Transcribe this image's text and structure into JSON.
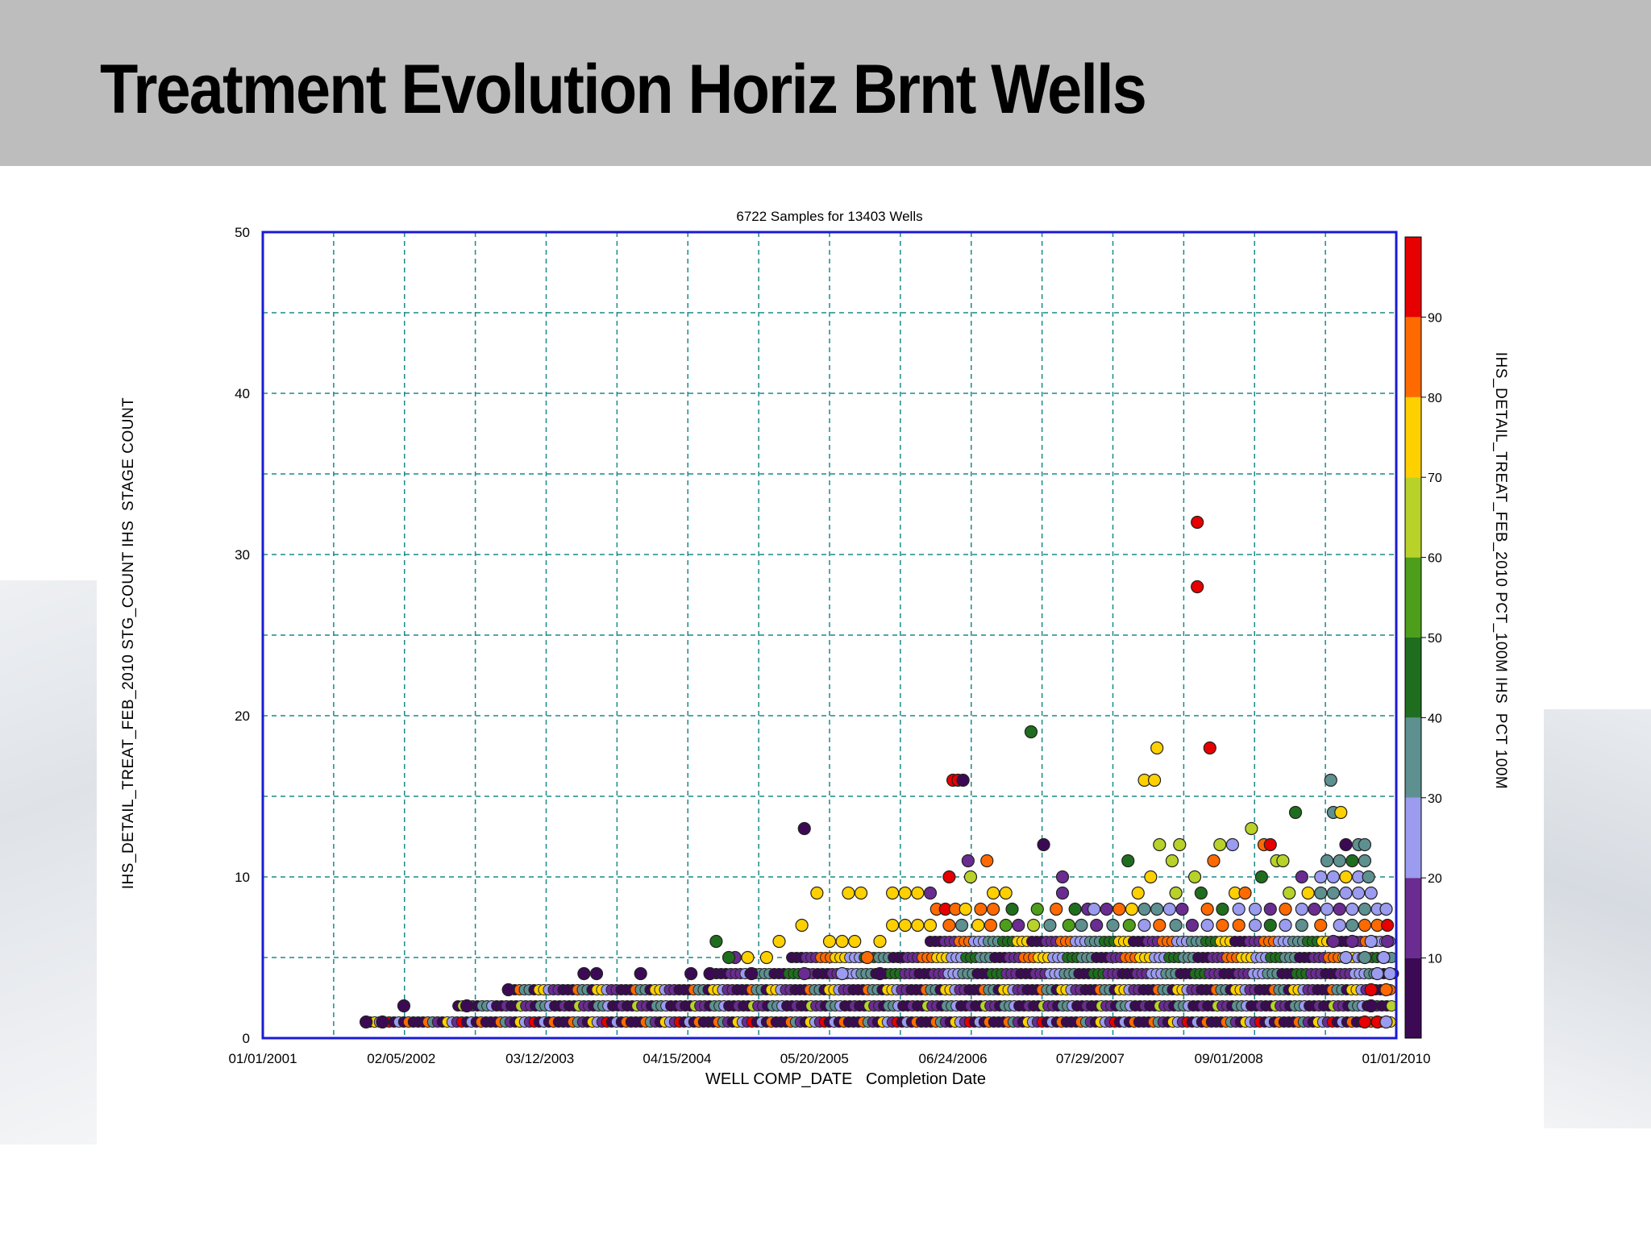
{
  "slide": {
    "title": "Treatment Evolution Horiz Brnt Wells"
  },
  "chart_data": {
    "type": "scatter",
    "title": "6722 Samples for 13403 Wells",
    "xlabel": "WELL COMP_DATE   Completion Date",
    "ylabel": "IHS_DETAIL_TREAT_FEB_2010 STG_COUNT IHS  STAGE COUNT",
    "colorbar_label": "IHS_DETAIL_TREAT_FEB_2010 PCT_100M IHS  PCT 100M",
    "x_ticks": [
      "01/01/2001",
      "02/05/2002",
      "03/12/2003",
      "04/15/2004",
      "05/20/2005",
      "06/24/2006",
      "07/29/2007",
      "09/01/2008",
      "01/01/2010"
    ],
    "x_tick_values": [
      2001.0,
      2002.1,
      2003.2,
      2004.29,
      2005.38,
      2006.48,
      2007.57,
      2008.67,
      2010.0
    ],
    "xlim": [
      2001.0,
      2010.0
    ],
    "y_ticks": [
      "0",
      "10",
      "20",
      "30",
      "40",
      "50"
    ],
    "ylim": [
      0,
      50
    ],
    "grid": true,
    "colorbar": {
      "range": [
        0,
        100
      ],
      "ticks": [
        "10",
        "20",
        "30",
        "40",
        "50",
        "60",
        "70",
        "80",
        "90"
      ],
      "colors": [
        "#3c0a55",
        "#6a2c91",
        "#9b9bf0",
        "#5e9090",
        "#1f6e1f",
        "#4d9e1a",
        "#b8d22a",
        "#ffd000",
        "#ff6a00",
        "#e60000"
      ]
    },
    "points": [
      {
        "x": 2001.82,
        "y": 1,
        "c": 5
      },
      {
        "x": 2001.95,
        "y": 1,
        "c": 5
      },
      {
        "x": 2002.12,
        "y": 2,
        "c": 5
      },
      {
        "x": 2002.62,
        "y": 2,
        "c": 5
      },
      {
        "x": 2002.95,
        "y": 3,
        "c": 5
      },
      {
        "x": 2003.55,
        "y": 4,
        "c": 5
      },
      {
        "x": 2003.65,
        "y": 4,
        "c": 5
      },
      {
        "x": 2004.0,
        "y": 4,
        "c": 5
      },
      {
        "x": 2004.4,
        "y": 4,
        "c": 5
      },
      {
        "x": 2004.55,
        "y": 4,
        "c": 5
      },
      {
        "x": 2004.75,
        "y": 5,
        "c": 15
      },
      {
        "x": 2004.85,
        "y": 5,
        "c": 75
      },
      {
        "x": 2005.0,
        "y": 5,
        "c": 72
      },
      {
        "x": 2005.1,
        "y": 6,
        "c": 70
      },
      {
        "x": 2004.88,
        "y": 4,
        "c": 5
      },
      {
        "x": 2005.3,
        "y": 4,
        "c": 15
      },
      {
        "x": 2005.6,
        "y": 4,
        "c": 25
      },
      {
        "x": 2005.9,
        "y": 4,
        "c": 5
      },
      {
        "x": 2004.6,
        "y": 6,
        "c": 45
      },
      {
        "x": 2004.7,
        "y": 5,
        "c": 45
      },
      {
        "x": 2005.3,
        "y": 13,
        "c": 5
      },
      {
        "x": 2005.4,
        "y": 9,
        "c": 75
      },
      {
        "x": 2005.28,
        "y": 7,
        "c": 72
      },
      {
        "x": 2005.5,
        "y": 6,
        "c": 75
      },
      {
        "x": 2005.6,
        "y": 6,
        "c": 72
      },
      {
        "x": 2005.7,
        "y": 6,
        "c": 70
      },
      {
        "x": 2005.8,
        "y": 5,
        "c": 85
      },
      {
        "x": 2005.9,
        "y": 6,
        "c": 75
      },
      {
        "x": 2006.0,
        "y": 9,
        "c": 75
      },
      {
        "x": 2006.1,
        "y": 9,
        "c": 72
      },
      {
        "x": 2005.65,
        "y": 9,
        "c": 75
      },
      {
        "x": 2005.75,
        "y": 9,
        "c": 72
      },
      {
        "x": 2006.3,
        "y": 9,
        "c": 15
      },
      {
        "x": 2006.2,
        "y": 9,
        "c": 72
      },
      {
        "x": 2006.35,
        "y": 8,
        "c": 85
      },
      {
        "x": 2006.42,
        "y": 8,
        "c": 90
      },
      {
        "x": 2006.5,
        "y": 8,
        "c": 85
      },
      {
        "x": 2006.58,
        "y": 8,
        "c": 75
      },
      {
        "x": 2006.7,
        "y": 8,
        "c": 85
      },
      {
        "x": 2006.45,
        "y": 10,
        "c": 95
      },
      {
        "x": 2006.6,
        "y": 11,
        "c": 15
      },
      {
        "x": 2006.75,
        "y": 11,
        "c": 85
      },
      {
        "x": 2006.62,
        "y": 10,
        "c": 65
      },
      {
        "x": 2006.8,
        "y": 9,
        "c": 72
      },
      {
        "x": 2006.48,
        "y": 16,
        "c": 95
      },
      {
        "x": 2006.52,
        "y": 16,
        "c": 92
      },
      {
        "x": 2006.56,
        "y": 16,
        "c": 5
      },
      {
        "x": 2006.8,
        "y": 8,
        "c": 85
      },
      {
        "x": 2006.9,
        "y": 9,
        "c": 75
      },
      {
        "x": 2006.95,
        "y": 8,
        "c": 45
      },
      {
        "x": 2007.1,
        "y": 19,
        "c": 45
      },
      {
        "x": 2007.2,
        "y": 12,
        "c": 5
      },
      {
        "x": 2007.35,
        "y": 10,
        "c": 15
      },
      {
        "x": 2007.35,
        "y": 9,
        "c": 15
      },
      {
        "x": 2007.15,
        "y": 8,
        "c": 55
      },
      {
        "x": 2007.3,
        "y": 8,
        "c": 85
      },
      {
        "x": 2007.45,
        "y": 8,
        "c": 45
      },
      {
        "x": 2007.55,
        "y": 8,
        "c": 15
      },
      {
        "x": 2007.7,
        "y": 8,
        "c": 15
      },
      {
        "x": 2007.8,
        "y": 8,
        "c": 85
      },
      {
        "x": 2007.9,
        "y": 8,
        "c": 75
      },
      {
        "x": 2008.0,
        "y": 8,
        "c": 35
      },
      {
        "x": 2008.1,
        "y": 8,
        "c": 35
      },
      {
        "x": 2007.87,
        "y": 11,
        "c": 45
      },
      {
        "x": 2007.95,
        "y": 9,
        "c": 72
      },
      {
        "x": 2008.05,
        "y": 10,
        "c": 72
      },
      {
        "x": 2008.12,
        "y": 12,
        "c": 65
      },
      {
        "x": 2008.0,
        "y": 16,
        "c": 72
      },
      {
        "x": 2008.08,
        "y": 16,
        "c": 72
      },
      {
        "x": 2008.1,
        "y": 18,
        "c": 72
      },
      {
        "x": 2008.22,
        "y": 11,
        "c": 65
      },
      {
        "x": 2008.28,
        "y": 12,
        "c": 65
      },
      {
        "x": 2008.25,
        "y": 9,
        "c": 65
      },
      {
        "x": 2008.4,
        "y": 10,
        "c": 65
      },
      {
        "x": 2008.45,
        "y": 9,
        "c": 45
      },
      {
        "x": 2008.55,
        "y": 11,
        "c": 85
      },
      {
        "x": 2008.6,
        "y": 12,
        "c": 65
      },
      {
        "x": 2008.5,
        "y": 8,
        "c": 85
      },
      {
        "x": 2008.42,
        "y": 32,
        "c": 95
      },
      {
        "x": 2008.42,
        "y": 28,
        "c": 95
      },
      {
        "x": 2008.52,
        "y": 18,
        "c": 95
      },
      {
        "x": 2008.7,
        "y": 12,
        "c": 25
      },
      {
        "x": 2008.72,
        "y": 9,
        "c": 75
      },
      {
        "x": 2008.8,
        "y": 9,
        "c": 85
      },
      {
        "x": 2008.85,
        "y": 13,
        "c": 65
      },
      {
        "x": 2008.95,
        "y": 12,
        "c": 85
      },
      {
        "x": 2009.0,
        "y": 12,
        "c": 92
      },
      {
        "x": 2009.05,
        "y": 11,
        "c": 65
      },
      {
        "x": 2009.1,
        "y": 11,
        "c": 65
      },
      {
        "x": 2008.93,
        "y": 10,
        "c": 45
      },
      {
        "x": 2009.15,
        "y": 9,
        "c": 65
      },
      {
        "x": 2009.25,
        "y": 10,
        "c": 15
      },
      {
        "x": 2009.2,
        "y": 14,
        "c": 45
      },
      {
        "x": 2009.48,
        "y": 16,
        "c": 35
      },
      {
        "x": 2009.5,
        "y": 14,
        "c": 35
      },
      {
        "x": 2009.56,
        "y": 14,
        "c": 72
      },
      {
        "x": 2009.6,
        "y": 12,
        "c": 5
      },
      {
        "x": 2009.7,
        "y": 12,
        "c": 35
      },
      {
        "x": 2009.75,
        "y": 12,
        "c": 35
      },
      {
        "x": 2009.45,
        "y": 11,
        "c": 35
      },
      {
        "x": 2009.55,
        "y": 11,
        "c": 35
      },
      {
        "x": 2009.65,
        "y": 11,
        "c": 45
      },
      {
        "x": 2009.75,
        "y": 11,
        "c": 35
      },
      {
        "x": 2009.4,
        "y": 10,
        "c": 25
      },
      {
        "x": 2009.5,
        "y": 10,
        "c": 25
      },
      {
        "x": 2009.6,
        "y": 10,
        "c": 72
      },
      {
        "x": 2009.7,
        "y": 10,
        "c": 25
      },
      {
        "x": 2009.78,
        "y": 10,
        "c": 35
      },
      {
        "x": 2009.3,
        "y": 9,
        "c": 72
      },
      {
        "x": 2009.4,
        "y": 9,
        "c": 35
      },
      {
        "x": 2009.5,
        "y": 9,
        "c": 35
      },
      {
        "x": 2009.6,
        "y": 9,
        "c": 25
      },
      {
        "x": 2009.7,
        "y": 9,
        "c": 25
      },
      {
        "x": 2009.8,
        "y": 9,
        "c": 25
      },
      {
        "x": 2009.45,
        "y": 8,
        "c": 25
      },
      {
        "x": 2009.55,
        "y": 8,
        "c": 15
      },
      {
        "x": 2009.65,
        "y": 8,
        "c": 25
      },
      {
        "x": 2009.75,
        "y": 8,
        "c": 35
      },
      {
        "x": 2009.85,
        "y": 8,
        "c": 25
      },
      {
        "x": 2009.92,
        "y": 8,
        "c": 25
      },
      {
        "x": 2009.4,
        "y": 7,
        "c": 85
      },
      {
        "x": 2009.55,
        "y": 7,
        "c": 25
      },
      {
        "x": 2009.65,
        "y": 7,
        "c": 35
      },
      {
        "x": 2009.75,
        "y": 7,
        "c": 85
      },
      {
        "x": 2009.85,
        "y": 7,
        "c": 85
      },
      {
        "x": 2009.93,
        "y": 7,
        "c": 95
      },
      {
        "x": 2009.5,
        "y": 6,
        "c": 15
      },
      {
        "x": 2009.65,
        "y": 6,
        "c": 15
      },
      {
        "x": 2009.8,
        "y": 6,
        "c": 25
      },
      {
        "x": 2009.93,
        "y": 6,
        "c": 15
      },
      {
        "x": 2009.6,
        "y": 5,
        "c": 25
      },
      {
        "x": 2009.75,
        "y": 5,
        "c": 35
      },
      {
        "x": 2009.9,
        "y": 5,
        "c": 25
      },
      {
        "x": 2009.85,
        "y": 4,
        "c": 25
      },
      {
        "x": 2009.95,
        "y": 4,
        "c": 25
      },
      {
        "x": 2009.8,
        "y": 3,
        "c": 92
      },
      {
        "x": 2009.92,
        "y": 3,
        "c": 85
      },
      {
        "x": 2009.8,
        "y": 2,
        "c": 5
      },
      {
        "x": 2009.75,
        "y": 1,
        "c": 95
      },
      {
        "x": 2009.85,
        "y": 1,
        "c": 95
      },
      {
        "x": 2009.92,
        "y": 1,
        "c": 25
      },
      {
        "x": 2006.0,
        "y": 7,
        "c": 72
      },
      {
        "x": 2006.1,
        "y": 7,
        "c": 70
      },
      {
        "x": 2006.2,
        "y": 7,
        "c": 75
      },
      {
        "x": 2006.3,
        "y": 7,
        "c": 72
      },
      {
        "x": 2006.45,
        "y": 7,
        "c": 85
      },
      {
        "x": 2006.55,
        "y": 7,
        "c": 35
      },
      {
        "x": 2006.68,
        "y": 7,
        "c": 72
      },
      {
        "x": 2006.78,
        "y": 7,
        "c": 85
      },
      {
        "x": 2006.9,
        "y": 7,
        "c": 55
      },
      {
        "x": 2007.0,
        "y": 7,
        "c": 15
      },
      {
        "x": 2007.12,
        "y": 7,
        "c": 65
      },
      {
        "x": 2007.25,
        "y": 7,
        "c": 35
      },
      {
        "x": 2007.4,
        "y": 7,
        "c": 55
      },
      {
        "x": 2007.5,
        "y": 7,
        "c": 35
      },
      {
        "x": 2007.62,
        "y": 7,
        "c": 15
      },
      {
        "x": 2007.75,
        "y": 7,
        "c": 35
      },
      {
        "x": 2007.88,
        "y": 7,
        "c": 55
      },
      {
        "x": 2008.0,
        "y": 7,
        "c": 25
      },
      {
        "x": 2008.12,
        "y": 7,
        "c": 85
      },
      {
        "x": 2008.25,
        "y": 7,
        "c": 35
      },
      {
        "x": 2008.38,
        "y": 7,
        "c": 15
      },
      {
        "x": 2008.5,
        "y": 7,
        "c": 25
      },
      {
        "x": 2008.62,
        "y": 7,
        "c": 85
      },
      {
        "x": 2008.75,
        "y": 7,
        "c": 85
      },
      {
        "x": 2008.88,
        "y": 7,
        "c": 25
      },
      {
        "x": 2009.0,
        "y": 7,
        "c": 45
      },
      {
        "x": 2009.12,
        "y": 7,
        "c": 25
      },
      {
        "x": 2009.25,
        "y": 7,
        "c": 35
      },
      {
        "x": 2007.6,
        "y": 8,
        "c": 25
      },
      {
        "x": 2008.2,
        "y": 8,
        "c": 25
      },
      {
        "x": 2008.3,
        "y": 8,
        "c": 15
      },
      {
        "x": 2008.62,
        "y": 8,
        "c": 45
      },
      {
        "x": 2008.75,
        "y": 8,
        "c": 25
      },
      {
        "x": 2008.88,
        "y": 8,
        "c": 25
      },
      {
        "x": 2009.0,
        "y": 8,
        "c": 15
      },
      {
        "x": 2009.12,
        "y": 8,
        "c": 85
      },
      {
        "x": 2009.25,
        "y": 8,
        "c": 25
      },
      {
        "x": 2009.35,
        "y": 8,
        "c": 15
      }
    ],
    "bands": [
      {
        "y": 1,
        "x0": 2001.85,
        "x1": 2009.98,
        "c": [
          5,
          5,
          15,
          5,
          25,
          35,
          5,
          72,
          85,
          95
        ]
      },
      {
        "y": 2,
        "x0": 2002.55,
        "x1": 2009.98,
        "c": [
          5,
          15,
          5,
          25,
          35,
          5,
          15,
          65
        ]
      },
      {
        "y": 3,
        "x0": 2003.0,
        "x1": 2009.98,
        "c": [
          5,
          5,
          15,
          25,
          72,
          5,
          35,
          85
        ]
      },
      {
        "y": 4,
        "x0": 2004.6,
        "x1": 2009.98,
        "c": [
          5,
          15,
          25,
          35,
          5,
          45,
          15
        ]
      },
      {
        "y": 5,
        "x0": 2005.2,
        "x1": 2009.98,
        "c": [
          5,
          15,
          85,
          72,
          25,
          45,
          35
        ]
      },
      {
        "y": 6,
        "x0": 2006.3,
        "x1": 2009.98,
        "c": [
          5,
          15,
          85,
          25,
          35,
          45,
          72
        ]
      }
    ]
  }
}
